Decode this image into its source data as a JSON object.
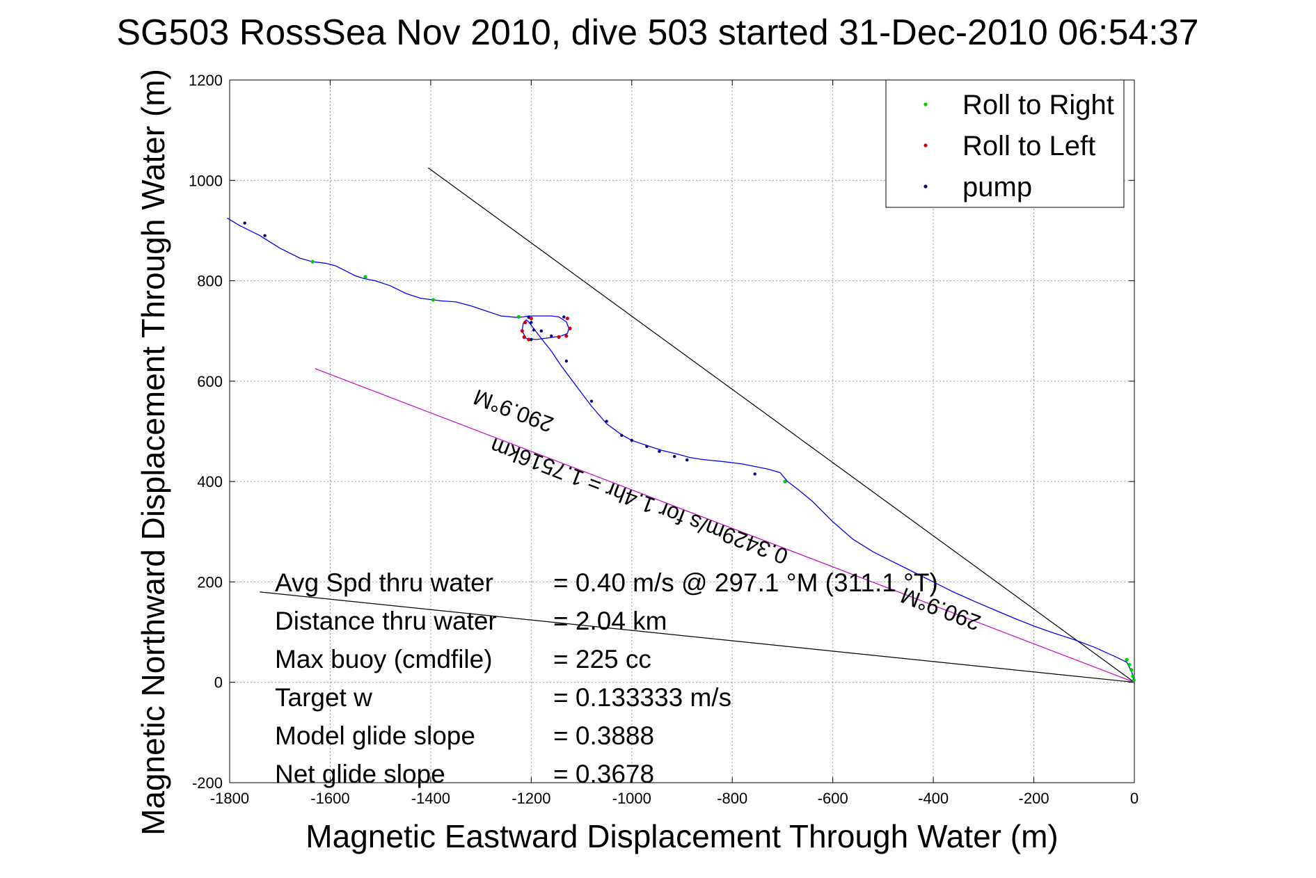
{
  "chart_data": {
    "type": "line",
    "title": "SG503 RossSea Nov 2010, dive 503 started 31-Dec-2010 06:54:37",
    "xlabel": "Magnetic Eastward Displacement Through Water (m)",
    "ylabel": "Magnetic Northward Displacement Through Water (m)",
    "xlim": [
      -1800,
      0
    ],
    "ylim": [
      -200,
      1200
    ],
    "xticks": [
      -1800,
      -1600,
      -1400,
      -1200,
      -1000,
      -800,
      -600,
      -400,
      -200,
      0
    ],
    "yticks": [
      -200,
      0,
      200,
      400,
      600,
      800,
      1000,
      1200
    ],
    "grid": true,
    "legend_position": "top-right",
    "legend": [
      {
        "label": "Roll to Right",
        "color": "#00cc00"
      },
      {
        "label": "Roll to Left",
        "color": "#cc0000"
      },
      {
        "label": "pump",
        "color": "#000080"
      }
    ],
    "track_color": "#0000ff",
    "track": {
      "x": [
        -1805,
        -1780,
        -1740,
        -1700,
        -1660,
        -1635,
        -1610,
        -1590,
        -1570,
        -1550,
        -1535,
        -1510,
        -1480,
        -1450,
        -1420,
        -1395,
        -1380,
        -1350,
        -1320,
        -1290,
        -1260,
        -1230,
        -1215,
        -1205,
        -1190,
        -1160,
        -1145,
        -1130,
        -1125,
        -1128,
        -1140,
        -1160,
        -1190,
        -1210,
        -1218,
        -1216,
        -1210,
        -1205,
        -1195,
        -1180,
        -1160,
        -1140,
        -1110,
        -1080,
        -1050,
        -1020,
        -1000,
        -970,
        -940,
        -910,
        -885,
        -860,
        -820,
        -780,
        -755,
        -730,
        -705,
        -690,
        -670,
        -640,
        -600,
        -560,
        -520,
        -480,
        -440,
        -400,
        -360,
        -320,
        -280,
        -240,
        -200,
        -160,
        -120,
        -80,
        -40,
        -15,
        -5,
        0
      ],
      "y": [
        925,
        910,
        890,
        865,
        845,
        838,
        835,
        830,
        820,
        810,
        805,
        800,
        790,
        775,
        765,
        762,
        760,
        758,
        750,
        740,
        730,
        727,
        728,
        730,
        730,
        730,
        728,
        718,
        705,
        695,
        690,
        687,
        683,
        685,
        700,
        715,
        722,
        718,
        705,
        685,
        660,
        630,
        590,
        550,
        515,
        493,
        482,
        472,
        462,
        455,
        448,
        444,
        440,
        435,
        430,
        425,
        418,
        400,
        385,
        360,
        320,
        285,
        260,
        240,
        220,
        200,
        180,
        162,
        145,
        128,
        112,
        98,
        85,
        70,
        52,
        40,
        20,
        0
      ]
    },
    "roll_right_points": {
      "x": [
        -1635,
        -1530,
        -1395,
        -1225,
        -695,
        -15,
        -10,
        -6,
        -3,
        -1
      ],
      "y": [
        838,
        808,
        762,
        728,
        400,
        45,
        35,
        25,
        12,
        4
      ]
    },
    "roll_left_points": {
      "x": [
        -1128,
        -1123,
        -1130,
        -1145,
        -1200,
        -1212,
        -1218,
        -1214,
        -1205
      ],
      "y": [
        725,
        705,
        690,
        688,
        725,
        717,
        700,
        688,
        683
      ]
    },
    "pump_points": {
      "x": [
        -1770,
        -1730,
        -1205,
        -1200,
        -1195,
        -1135,
        -1160,
        -1200,
        -1180,
        -1130,
        -1080,
        -1050,
        -1020,
        -1000,
        -970,
        -945,
        -915,
        -890,
        -755
      ],
      "y": [
        915,
        890,
        727,
        717,
        702,
        728,
        690,
        683,
        700,
        640,
        560,
        520,
        492,
        482,
        470,
        460,
        450,
        443,
        415
      ]
    },
    "heading_lines": [
      {
        "color": "#000000",
        "x": [
          -1405,
          0
        ],
        "y": [
          1025,
          0
        ]
      },
      {
        "color": "#000000",
        "x": [
          -1740,
          0
        ],
        "y": [
          180,
          0
        ]
      },
      {
        "color": "#cc00cc",
        "x": [
          -1630,
          0
        ],
        "y": [
          625,
          0
        ]
      }
    ],
    "annotations": [
      {
        "text": "290.9°M",
        "x": -1230,
        "y": 555,
        "angle": 200.9
      },
      {
        "text": "290.9°M",
        "x": -380,
        "y": 160,
        "angle": 200.9
      },
      {
        "text": "0.3429m/s for 1.4hr = 1.7516km",
        "x": -980,
        "y": 375,
        "angle": 200.9
      }
    ],
    "stats": [
      {
        "label": "Avg Spd thru water",
        "value": "=  0.40 m/s @ 297.1 °M (311.1 °T)"
      },
      {
        "label": "Distance thru water",
        "value": "=  2.04 km"
      },
      {
        "label": "Max buoy (cmdfile)",
        "value": "= 225 cc"
      },
      {
        "label": "Target w",
        "value": "= 0.133333 m/s"
      },
      {
        "label": "Model glide slope",
        "value": "= 0.3888"
      },
      {
        "label": "Net glide slope",
        "value": "= 0.3678"
      }
    ]
  }
}
